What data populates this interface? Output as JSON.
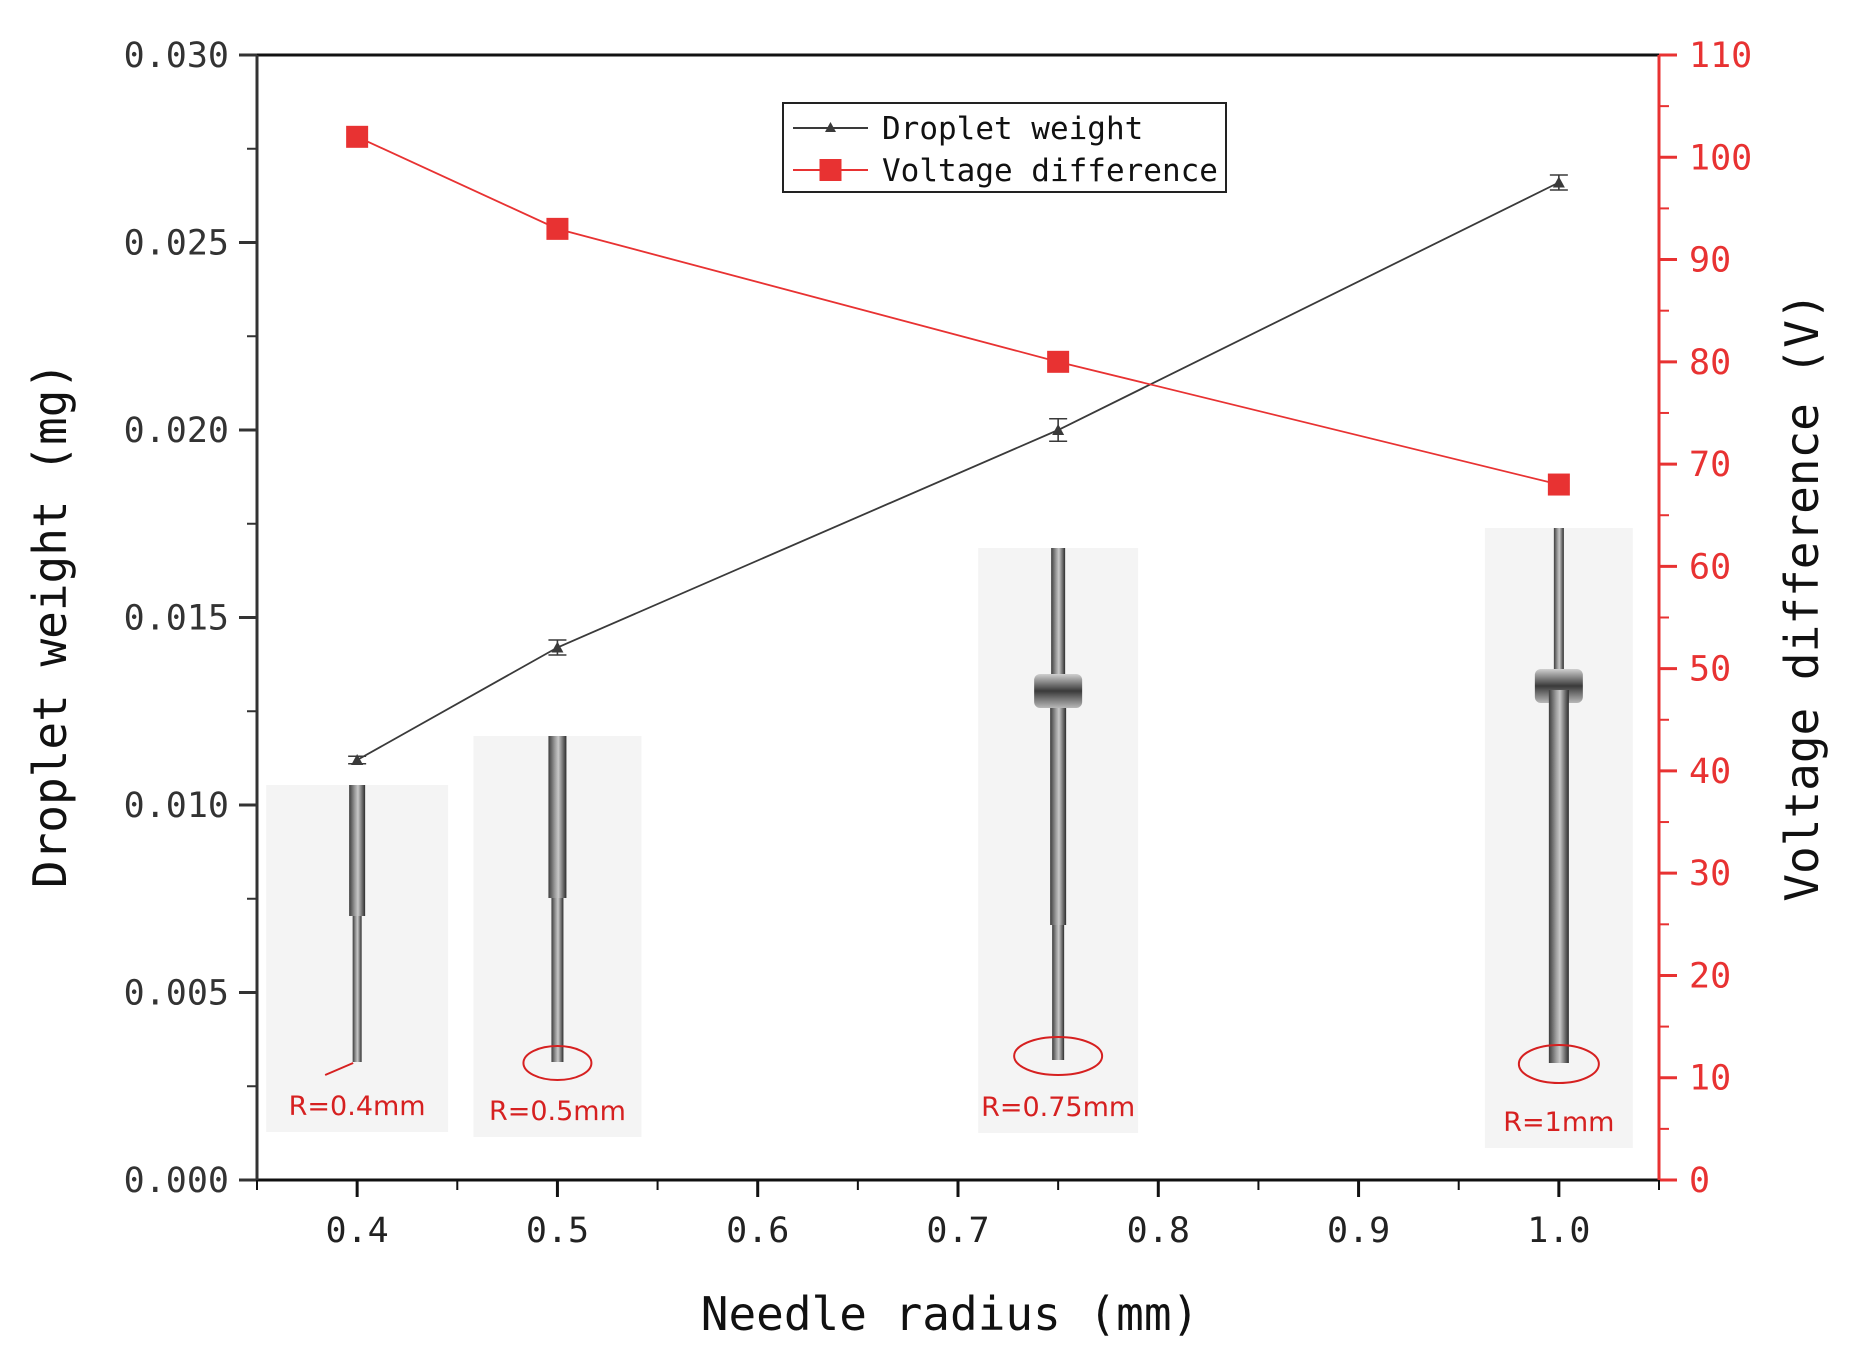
{
  "chart_data": {
    "type": "line",
    "title": "",
    "xlabel": "Needle radius (mm)",
    "ylabel": "Droplet weight (mg)",
    "ylabel_right": "Voltage difference (V)",
    "xlim": [
      0.35,
      1.05
    ],
    "ylim": [
      0.0,
      0.03
    ],
    "ylim_right": [
      0,
      110
    ],
    "x_ticks": [
      "0.4",
      "0.5",
      "0.6",
      "0.7",
      "0.8",
      "0.9",
      "1.0"
    ],
    "y_ticks": [
      "0.000",
      "0.005",
      "0.010",
      "0.015",
      "0.020",
      "0.025",
      "0.030"
    ],
    "y_right_ticks": [
      "0",
      "10",
      "20",
      "30",
      "40",
      "50",
      "60",
      "70",
      "80",
      "90",
      "100",
      "110"
    ],
    "grid": false,
    "legend_position": "top-center",
    "series": [
      {
        "name": "Droplet weight",
        "axis": "left",
        "marker": "triangle",
        "color": "#3a3a3a",
        "x": [
          0.4,
          0.5,
          0.75,
          1.0
        ],
        "values": [
          0.0112,
          0.0142,
          0.02,
          0.0266
        ],
        "error": [
          0.0001,
          0.0002,
          0.0003,
          0.0002
        ]
      },
      {
        "name": "Voltage difference",
        "axis": "right",
        "marker": "square",
        "color": "#e83232",
        "x": [
          0.4,
          0.5,
          0.75,
          1.0
        ],
        "values": [
          102,
          93,
          80,
          68
        ]
      }
    ],
    "photo_insets": [
      {
        "x": 0.4,
        "label": "R=0.4mm"
      },
      {
        "x": 0.5,
        "label": "R=0.5mm"
      },
      {
        "x": 0.75,
        "label": "R=0.75mm"
      },
      {
        "x": 1.0,
        "label": "R=1mm"
      }
    ],
    "colors": {
      "left_axis": "#333333",
      "right_axis": "#e83232",
      "label_red": "#d62020"
    }
  }
}
